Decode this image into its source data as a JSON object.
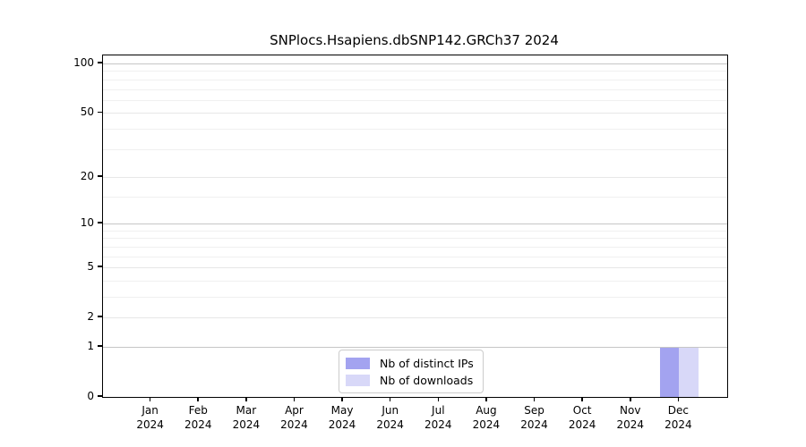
{
  "chart_data": {
    "type": "bar",
    "title": "SNPlocs.Hsapiens.dbSNP142.GRCh37 2024",
    "categories": [
      "Jan\n2024",
      "Feb\n2024",
      "Mar\n2024",
      "Apr\n2024",
      "May\n2024",
      "Jun\n2024",
      "Jul\n2024",
      "Aug\n2024",
      "Sep\n2024",
      "Oct\n2024",
      "Nov\n2024",
      "Dec\n2024"
    ],
    "series": [
      {
        "name": "Nb of distinct IPs",
        "color": "#a3a3f0",
        "values": [
          0,
          0,
          0,
          0,
          0,
          0,
          0,
          0,
          0,
          0,
          0,
          1
        ]
      },
      {
        "name": "Nb of downloads",
        "color": "#d8d8f8",
        "values": [
          0,
          0,
          0,
          0,
          0,
          0,
          0,
          0,
          0,
          0,
          0,
          1
        ]
      }
    ],
    "xlabel": "",
    "ylabel": "",
    "yscale": "log1p",
    "ylim": [
      0,
      112
    ],
    "yticks": [
      0,
      1,
      2,
      5,
      10,
      20,
      50,
      100
    ],
    "minor_yticks": [
      3,
      4,
      6,
      7,
      8,
      9,
      15,
      30,
      40,
      60,
      70,
      80,
      90
    ],
    "grid": true,
    "legend_position": "lower center",
    "colors": {
      "power_grid": "#c6c6c6",
      "major_grid": "#e7e7e7",
      "minor_grid": "#f0f0f0",
      "axis": "#000000",
      "background": "#ffffff"
    }
  }
}
